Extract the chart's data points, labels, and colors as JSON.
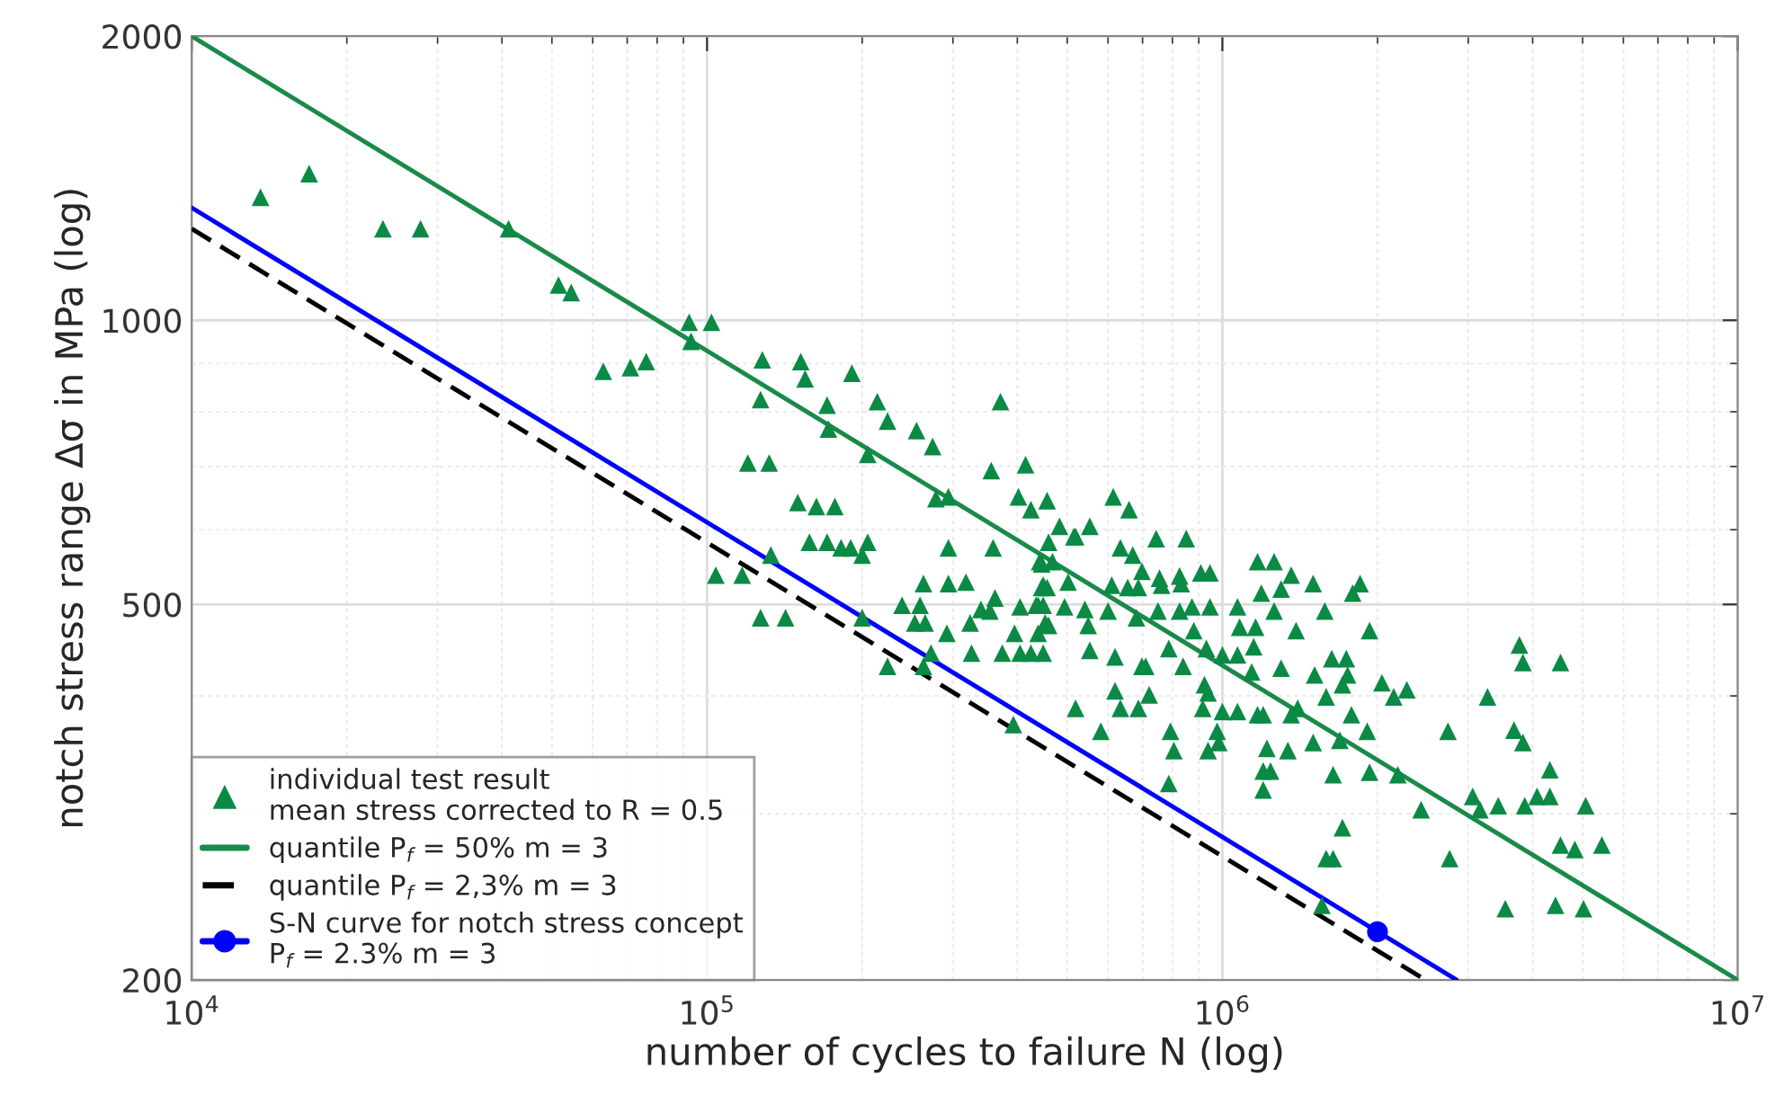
{
  "chart_data": {
    "type": "scatter",
    "xlabel": "number of cycles to failure N (log)",
    "ylabel": "notch stress range Δσ in MPa (log)",
    "log": "xy",
    "grid": true,
    "legend": "bottom left",
    "xlim": [
      10000,
      10000000
    ],
    "xticks": [
      {
        "value": 10000,
        "label": "10$^{4}$"
      },
      {
        "value": 100000,
        "label": "10$^{5}$"
      },
      {
        "value": 1000000,
        "label": "10$^{6}$"
      },
      {
        "value": 10000000,
        "label": "10$^{7}$"
      }
    ],
    "ylim": [
      200,
      2000
    ],
    "yticks": [
      200,
      500,
      1000,
      2000
    ],
    "series": [
      {
        "name": "individual test result\nmean stress corrected to R = 0.5",
        "color": "#0a8a45",
        "marker": "triangle",
        "x": [
          13600,
          16900,
          23500,
          27800,
          41200,
          51500,
          54500,
          92300,
          102000,
          93100,
          62900,
          71000,
          76200,
          128000,
          127000,
          120000,
          132000,
          133000,
          104000,
          117000,
          127000,
          142000,
          152000,
          155000,
          191000,
          171000,
          214000,
          371000,
          172000,
          224000,
          255000,
          274000,
          205000,
          356000,
          415000,
          278000,
          294000,
          402000,
          457000,
          425000,
          614000,
          659000,
          150000,
          163000,
          177000,
          483000,
          553000,
          158000,
          171000,
          182000,
          190000,
          205000,
          200000,
          294000,
          359000,
          460000,
          515000,
          634000,
          670000,
          698000,
          446000,
          468000,
          502000,
          446000,
          457000,
          263000,
          294000,
          318000,
          610000,
          655000,
          687000,
          239000,
          259000,
          340000,
          354000,
          362000,
          405000,
          435000,
          449000,
          494000,
          541000,
          600000,
          681000,
          200000,
          253000,
          265000,
          324000,
          395000,
          453000,
          439000,
          292000,
          549000,
          326000,
          374000,
          405000,
          425000,
          449000,
          553000,
          619000,
          698000,
          272000,
          224000,
          263000,
          619000,
          634000,
          687000,
          519000,
          581000,
          393000,
          519000,
          442000,
          449000,
          439000,
          460000,
          721000,
          710000,
          744000,
          851000,
          755000,
          826000,
          762000,
          832000,
          908000,
          946000,
          750000,
          826000,
          873000,
          946000,
          787000,
          839000,
          880000,
          931000,
          1000000,
          1070000,
          1150000,
          1070000,
          1080000,
          1160000,
          1170000,
          1260000,
          1190000,
          1300000,
          1360000,
          1500000,
          1260000,
          1390000,
          1580000,
          1790000,
          1850000,
          1930000,
          1140000,
          1300000,
          923000,
          938000,
          916000,
          1000000,
          1070000,
          1170000,
          1200000,
          1360000,
          1400000,
          977000,
          984000,
          938000,
          793000,
          805000,
          787000,
          1220000,
          1340000,
          1200000,
          1240000,
          1200000,
          1500000,
          1690000,
          1640000,
          1930000,
          2190000,
          1510000,
          1630000,
          1740000,
          1750000,
          1710000,
          1590000,
          1780000,
          1910000,
          2040000,
          2150000,
          2280000,
          2430000,
          1710000,
          1590000,
          1640000,
          1560000,
          2740000,
          2760000,
          3060000,
          3160000,
          3430000,
          3270000,
          3680000,
          3830000,
          4320000,
          4080000,
          4320000,
          3860000,
          5070000,
          3770000,
          3830000,
          4530000,
          4530000,
          4830000,
          5450000,
          3540000,
          4430000,
          5020000
        ],
        "values": [
          1350,
          1430,
          1250,
          1250,
          1250,
          1090,
          1070,
          995,
          995,
          950,
          883,
          891,
          904,
          908,
          824,
          706,
          706,
          564,
          537,
          537,
          484,
          484,
          904,
          867,
          879,
          813,
          820,
          820,
          767,
          782,
          764,
          735,
          721,
          693,
          703,
          647,
          650,
          650,
          644,
          630,
          650,
          630,
          641,
          635,
          635,
          605,
          605,
          582,
          582,
          574,
          574,
          582,
          564,
          574,
          574,
          582,
          590,
          574,
          564,
          542,
          552,
          555,
          528,
          521,
          521,
          526,
          526,
          528,
          524,
          521,
          521,
          499,
          499,
          494,
          492,
          508,
          497,
          499,
          499,
          497,
          494,
          492,
          484,
          484,
          478,
          478,
          478,
          466,
          478,
          466,
          466,
          475,
          444,
          444,
          444,
          444,
          444,
          447,
          440,
          430,
          444,
          430,
          430,
          405,
          388,
          388,
          388,
          367,
          373,
          590,
          555,
          524,
          499,
          475,
          401,
          430,
          587,
          587,
          533,
          536,
          524,
          526,
          540,
          540,
          492,
          492,
          497,
          497,
          449,
          430,
          469,
          449,
          442,
          442,
          451,
          497,
          473,
          473,
          555,
          555,
          514,
          519,
          537,
          526,
          492,
          469,
          492,
          514,
          526,
          469,
          424,
          428,
          411,
          403,
          388,
          385,
          385,
          382,
          382,
          382,
          388,
          367,
          357,
          350,
          367,
          350,
          323,
          352,
          350,
          333,
          333,
          318,
          357,
          359,
          330,
          332,
          330,
          421,
          438,
          438,
          421,
          411,
          399,
          382,
          367,
          413,
          399,
          406,
          303,
          290,
          269,
          269,
          240,
          367,
          269,
          313,
          303,
          306,
          399,
          368,
          357,
          334,
          313,
          313,
          306,
          306,
          453,
          434,
          434,
          278,
          275,
          278,
          238,
          240,
          238
        ]
      },
      {
        "type": "line",
        "name": "quantile P$_{f}$ = 50% m = 3",
        "color": "#1a8a4a",
        "line_style": "solid",
        "x": [
          10000,
          10000000
        ],
        "values": [
          2000,
          200
        ]
      },
      {
        "type": "line",
        "name": "quantile P$_{f}$ = 2,3% m = 3",
        "color": "#000000",
        "line_style": "dashed",
        "x": [
          10000,
          2480000
        ],
        "values": [
          1250,
          200
        ]
      },
      {
        "type": "line",
        "name": "S-N curve for notch stress concept\nP$_{f}$ = 2.3% m = 3",
        "color": "#0000ff",
        "line_style": "solid",
        "x": [
          10000,
          2850000
        ],
        "values": [
          1316,
          200
        ]
      },
      {
        "color": "#0000ff",
        "marker": "circle",
        "x": [
          2000000
        ],
        "values": [
          225
        ]
      }
    ]
  }
}
